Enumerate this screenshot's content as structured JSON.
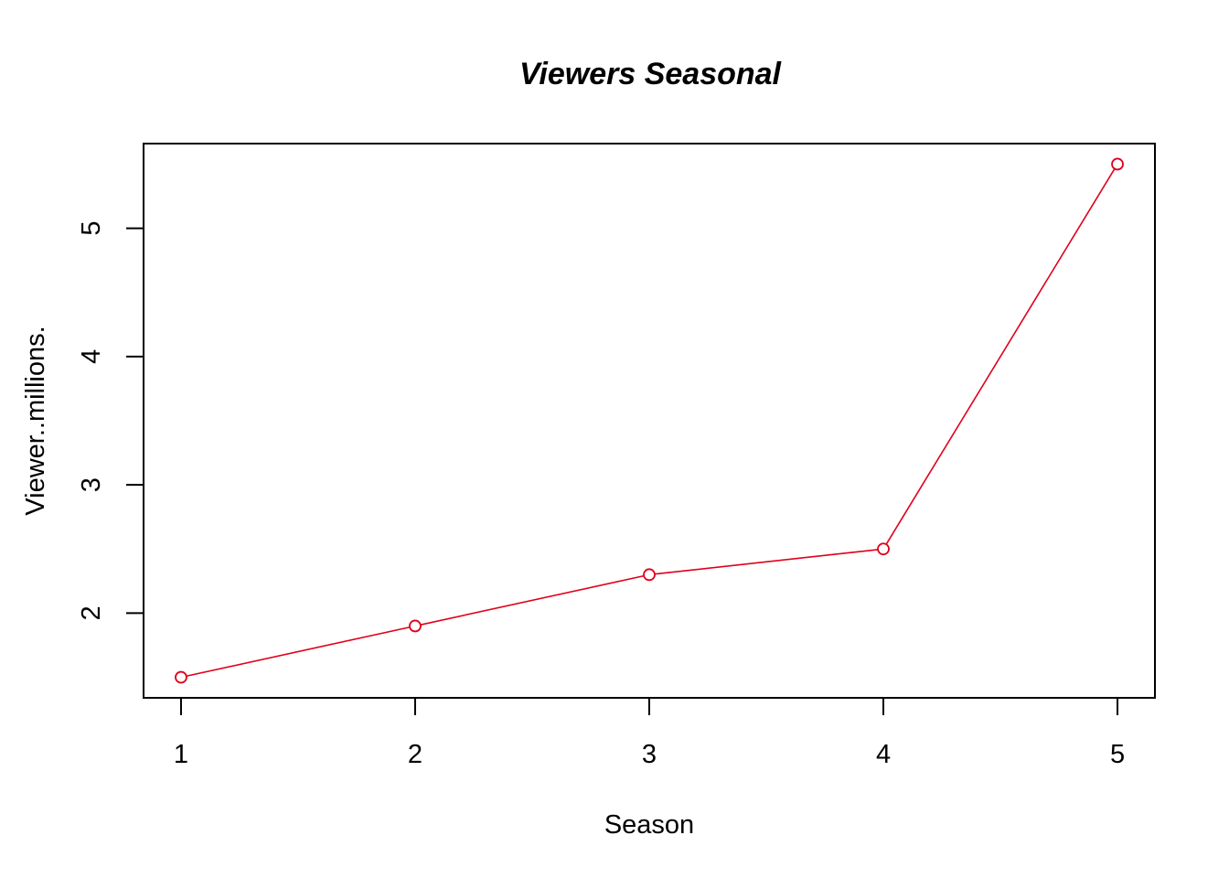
{
  "chart_data": {
    "type": "line",
    "title": "Viewers Seasonal",
    "xlabel": "Season",
    "ylabel": "Viewer..millions.",
    "x": [
      1,
      2,
      3,
      4,
      5
    ],
    "x_ticks": [
      "1",
      "2",
      "3",
      "4",
      "5"
    ],
    "y_ticks": [
      "2",
      "3",
      "4",
      "5"
    ],
    "series": [
      {
        "values": [
          1.5,
          1.9,
          2.3,
          2.5,
          5.5
        ],
        "color": "#e0001b",
        "marker": "open-circle"
      }
    ],
    "xlim": [
      0.84,
      5.16
    ],
    "ylim": [
      1.34,
      5.66
    ],
    "grid": false,
    "legend": "none"
  }
}
